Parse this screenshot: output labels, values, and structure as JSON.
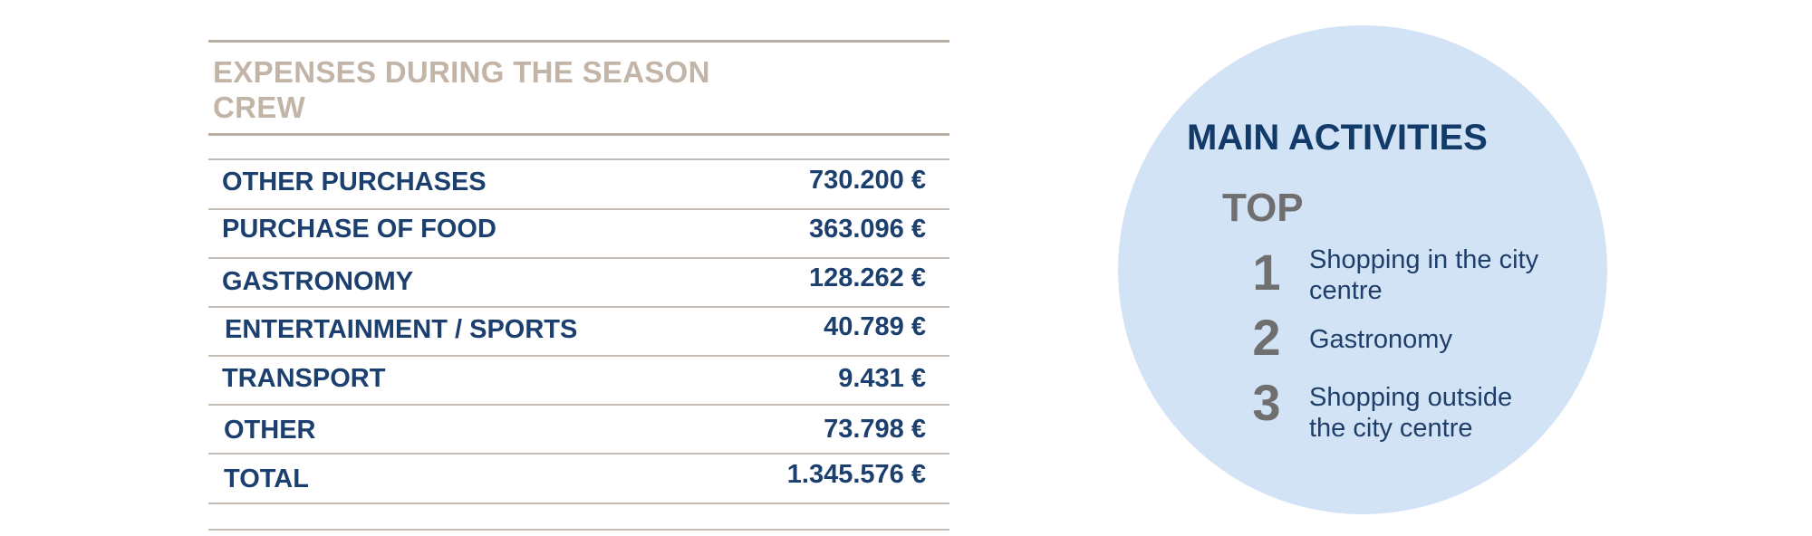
{
  "expenses": {
    "title": "EXPENSES DURING THE SEASON CREW",
    "rows": [
      {
        "label": "OTHER PURCHASES",
        "value": "730.200 €"
      },
      {
        "label": "PURCHASE OF FOOD",
        "value": "363.096 €"
      },
      {
        "label": "GASTRONOMY",
        "value": "128.262 €"
      },
      {
        "label": "ENTERTAINMENT / SPORTS",
        "value": "40.789 €"
      },
      {
        "label": "TRANSPORT",
        "value": "9.431 €"
      },
      {
        "label": "OTHER",
        "value": "73.798 €"
      },
      {
        "label": "TOTAL",
        "value": "1.345.576 €"
      }
    ]
  },
  "main_activities": {
    "title": "MAIN ACTIVITIES",
    "top_label": "TOP",
    "items": [
      {
        "rank": "1",
        "text": "Shopping in the city centre"
      },
      {
        "rank": "2",
        "text": "Gastronomy"
      },
      {
        "rank": "3",
        "text": "Shopping outside the city centre"
      }
    ],
    "circle_color": "#d3e3f6",
    "accent_color": "#123b6a"
  }
}
